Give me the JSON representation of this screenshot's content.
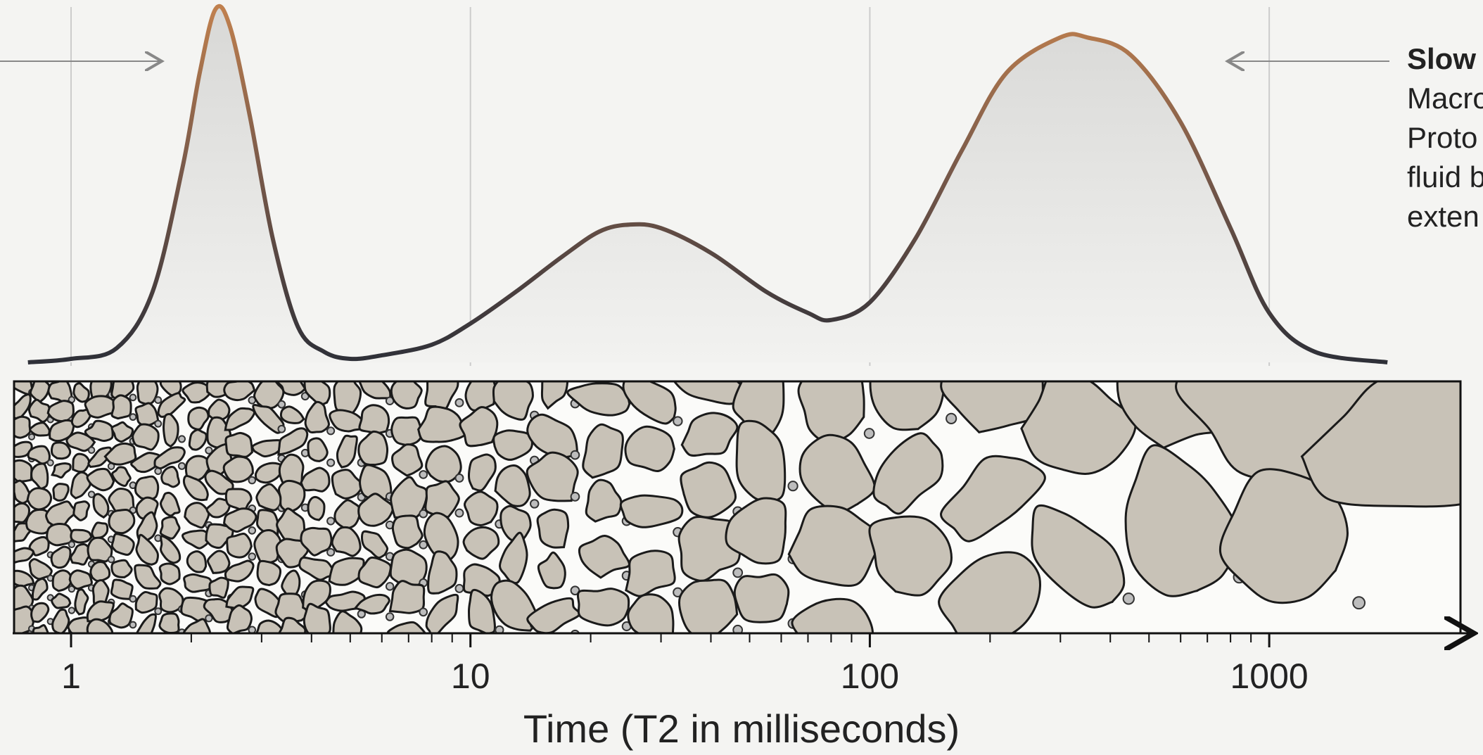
{
  "chart_data": {
    "type": "line",
    "xlabel": "Time (T2 in milliseconds)",
    "x": [
      0.78,
      1,
      1.3,
      1.6,
      1.9,
      2.1,
      2.3,
      2.5,
      2.8,
      3.2,
      3.7,
      4.3,
      5,
      6,
      8,
      10,
      13,
      17,
      21,
      25,
      30,
      40,
      55,
      70,
      80,
      100,
      130,
      170,
      220,
      300,
      350,
      450,
      600,
      800,
      1000,
      1300,
      1977
    ],
    "values": [
      0,
      1,
      4,
      20,
      55,
      82,
      100,
      95,
      70,
      35,
      10,
      3,
      1,
      2,
      5,
      11,
      20,
      30,
      37,
      39,
      38,
      31,
      20,
      14,
      12,
      17,
      35,
      60,
      82,
      92,
      92,
      87,
      68,
      38,
      14,
      3,
      0
    ],
    "color": "#b07a50",
    "log_x": true,
    "grid": true,
    "xlim": [
      0.72,
      3000
    ],
    "ylim": [
      0,
      100
    ],
    "xticks": [
      1,
      10,
      100,
      1000
    ],
    "minor_xticks": [
      2,
      3,
      4,
      5,
      6,
      7,
      8,
      9,
      20,
      30,
      40,
      50,
      60,
      70,
      80,
      90,
      200,
      300,
      400,
      500,
      600,
      700,
      800,
      900
    ],
    "annotations": [
      "Slow",
      "Macro",
      "Proto",
      "fluid b",
      "exten"
    ]
  }
}
